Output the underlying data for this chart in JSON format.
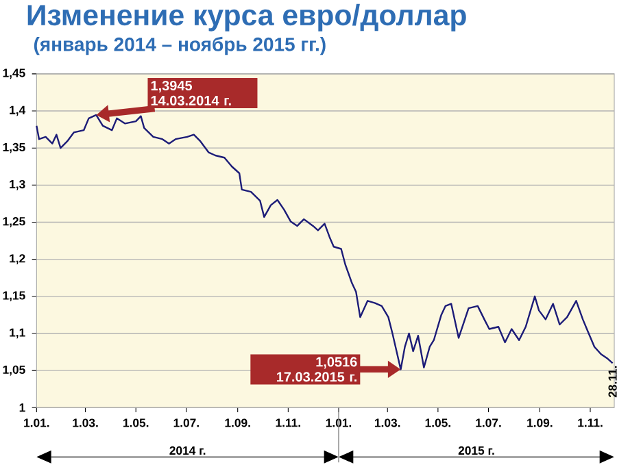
{
  "chart_data": {
    "type": "line",
    "title": "Изменение курса евро/доллар",
    "subtitle": "(январь 2014 – ноябрь 2015 гг.)",
    "x": [
      "2014-01-01",
      "2014-01-04",
      "2014-01-12",
      "2014-01-20",
      "2014-01-25",
      "2014-01-30",
      "2014-02-07",
      "2014-02-15",
      "2014-02-27",
      "2014-03-05",
      "2014-03-14",
      "2014-03-22",
      "2014-04-02",
      "2014-04-08",
      "2014-04-18",
      "2014-05-01",
      "2014-05-07",
      "2014-05-11",
      "2014-05-22",
      "2014-06-02",
      "2014-06-10",
      "2014-06-18",
      "2014-07-02",
      "2014-07-10",
      "2014-07-18",
      "2014-07-28",
      "2014-08-05",
      "2014-08-16",
      "2014-08-25",
      "2014-09-03",
      "2014-09-06",
      "2014-09-17",
      "2014-09-28",
      "2014-10-03",
      "2014-10-11",
      "2014-10-19",
      "2014-10-27",
      "2014-11-04",
      "2014-11-12",
      "2014-11-20",
      "2014-12-01",
      "2014-12-07",
      "2014-12-15",
      "2014-12-21",
      "2014-12-26",
      "2015-01-04",
      "2015-01-09",
      "2015-01-17",
      "2015-01-22",
      "2015-01-27",
      "2015-02-05",
      "2015-02-14",
      "2015-02-22",
      "2015-03-02",
      "2015-03-07",
      "2015-03-17",
      "2015-03-22",
      "2015-03-27",
      "2015-04-01",
      "2015-04-07",
      "2015-04-14",
      "2015-04-21",
      "2015-04-26",
      "2015-05-05",
      "2015-05-10",
      "2015-05-17",
      "2015-05-26",
      "2015-06-07",
      "2015-06-18",
      "2015-06-26",
      "2015-07-02",
      "2015-07-13",
      "2015-07-21",
      "2015-07-29",
      "2015-08-07",
      "2015-08-15",
      "2015-08-26",
      "2015-08-31",
      "2015-09-08",
      "2015-09-17",
      "2015-09-25",
      "2015-10-04",
      "2015-10-15",
      "2015-10-23",
      "2015-10-29",
      "2015-11-06",
      "2015-11-14",
      "2015-11-22",
      "2015-11-28"
    ],
    "series": [
      {
        "color": "#1c1c78",
        "values": [
          1.38,
          1.362,
          1.365,
          1.356,
          1.368,
          1.35,
          1.359,
          1.371,
          1.374,
          1.39,
          1.3945,
          1.38,
          1.374,
          1.39,
          1.383,
          1.386,
          1.393,
          1.377,
          1.365,
          1.362,
          1.356,
          1.362,
          1.365,
          1.368,
          1.359,
          1.344,
          1.34,
          1.337,
          1.325,
          1.316,
          1.294,
          1.291,
          1.279,
          1.257,
          1.273,
          1.28,
          1.267,
          1.251,
          1.245,
          1.254,
          1.245,
          1.239,
          1.248,
          1.23,
          1.217,
          1.214,
          1.193,
          1.168,
          1.156,
          1.122,
          1.144,
          1.141,
          1.137,
          1.122,
          1.1,
          1.0516,
          1.082,
          1.1,
          1.076,
          1.097,
          1.054,
          1.082,
          1.091,
          1.125,
          1.137,
          1.14,
          1.094,
          1.134,
          1.137,
          1.119,
          1.106,
          1.109,
          1.088,
          1.106,
          1.091,
          1.109,
          1.15,
          1.131,
          1.119,
          1.14,
          1.112,
          1.122,
          1.144,
          1.119,
          1.103,
          1.082,
          1.072,
          1.066,
          1.06
        ]
      }
    ],
    "xlim": [
      "2014-01-01",
      "2015-11-30"
    ],
    "xticks": [
      {
        "value": "2014-01-01",
        "label": "1.01."
      },
      {
        "value": "2014-03-01",
        "label": "1.03."
      },
      {
        "value": "2014-05-01",
        "label": "1.05."
      },
      {
        "value": "2014-07-01",
        "label": "1.07."
      },
      {
        "value": "2014-09-01",
        "label": "1.09."
      },
      {
        "value": "2014-11-01",
        "label": "1.11."
      },
      {
        "value": "2015-01-01",
        "label": "1.01."
      },
      {
        "value": "2015-03-01",
        "label": "1.03."
      },
      {
        "value": "2015-05-01",
        "label": "1.05."
      },
      {
        "value": "2015-07-01",
        "label": "1.07."
      },
      {
        "value": "2015-09-01",
        "label": "1.09."
      },
      {
        "value": "2015-11-01",
        "label": "1.11."
      }
    ],
    "ylim": [
      1,
      1.45
    ],
    "yticks": [
      1,
      {
        "value": 1.05,
        "label": "1,05"
      },
      {
        "value": 1.1,
        "label": "1,1"
      },
      {
        "value": 1.15,
        "label": "1,15"
      },
      {
        "value": 1.2,
        "label": "1,2"
      },
      {
        "value": 1.25,
        "label": "1,25"
      },
      {
        "value": 1.3,
        "label": "1,3"
      },
      {
        "value": 1.35,
        "label": "1,35"
      },
      {
        "value": 1.4,
        "label": "1,4"
      },
      {
        "value": 1.45,
        "label": "1,45"
      }
    ],
    "grid": "y",
    "annotations": [
      {
        "text": "1,3945 14.03.2014 г.",
        "x": "2014-03-14",
        "y": 1.3945
      },
      {
        "text": "1,0516 17.03.2015 г.",
        "x": "2015-03-17",
        "y": 1.0516
      },
      {
        "text": "28.11.",
        "x": "2015-11-28",
        "y": 1.06
      },
      "2014 г.",
      "2015 г."
    ]
  }
}
